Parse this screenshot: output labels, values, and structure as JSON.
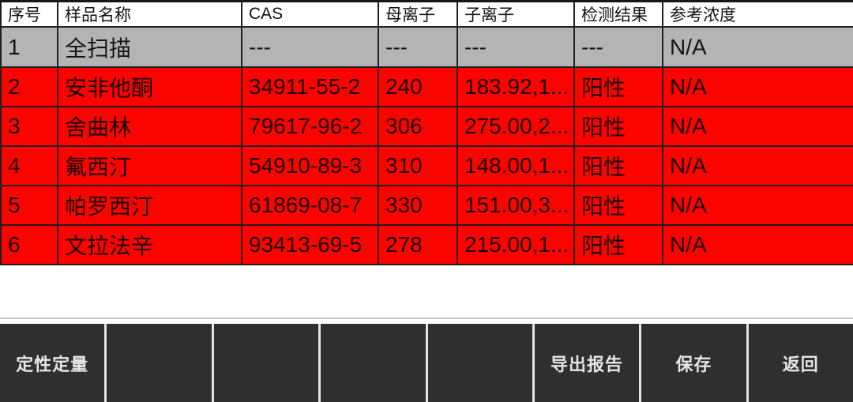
{
  "table": {
    "columns": [
      {
        "key": "no",
        "label": "序号"
      },
      {
        "key": "name",
        "label": "样品名称"
      },
      {
        "key": "cas",
        "label": "CAS"
      },
      {
        "key": "parent_ion",
        "label": "母离子"
      },
      {
        "key": "daughter_ion",
        "label": "子离子"
      },
      {
        "key": "result",
        "label": "检测结果"
      },
      {
        "key": "ref_conc",
        "label": "参考浓度"
      }
    ],
    "rows": [
      {
        "no": "1",
        "name": "全扫描",
        "cas": "---",
        "parent_ion": "---",
        "daughter_ion": "---",
        "result": "---",
        "ref_conc": "N/A",
        "state": "fullscan"
      },
      {
        "no": "2",
        "name": "安非他酮",
        "cas": "34911-55-2",
        "parent_ion": "240",
        "daughter_ion": "183.92,1...",
        "result": "阳性",
        "ref_conc": "N/A",
        "state": "positive"
      },
      {
        "no": "3",
        "name": "舍曲林",
        "cas": "79617-96-2",
        "parent_ion": "306",
        "daughter_ion": "275.00,2...",
        "result": "阳性",
        "ref_conc": "N/A",
        "state": "positive"
      },
      {
        "no": "4",
        "name": "氟西汀",
        "cas": "54910-89-3",
        "parent_ion": "310",
        "daughter_ion": "148.00,1...",
        "result": "阳性",
        "ref_conc": "N/A",
        "state": "positive"
      },
      {
        "no": "5",
        "name": "帕罗西汀",
        "cas": "61869-08-7",
        "parent_ion": "330",
        "daughter_ion": "151.00,3...",
        "result": "阳性",
        "ref_conc": "N/A",
        "state": "positive"
      },
      {
        "no": "6",
        "name": "文拉法辛",
        "cas": "93413-69-5",
        "parent_ion": "278",
        "daughter_ion": "215.00,1...",
        "result": "阳性",
        "ref_conc": "N/A",
        "state": "positive"
      }
    ]
  },
  "toolbar": {
    "buttons": [
      {
        "name": "qualitative-quantitative-button",
        "label": "定性定量"
      },
      {
        "name": "toolbar-slot-2",
        "label": ""
      },
      {
        "name": "toolbar-slot-3",
        "label": ""
      },
      {
        "name": "toolbar-slot-4",
        "label": ""
      },
      {
        "name": "toolbar-slot-5",
        "label": ""
      },
      {
        "name": "export-report-button",
        "label": "导出报告"
      },
      {
        "name": "save-button",
        "label": "保存"
      },
      {
        "name": "back-button",
        "label": "返回"
      }
    ]
  },
  "colors": {
    "positive_row": "#fb0400",
    "fullscan_row": "#b4b4b4",
    "toolbar_button": "#2f2f2f",
    "toolbar_separator": "#e3e3e3",
    "table_border": "#1f1f1f"
  }
}
